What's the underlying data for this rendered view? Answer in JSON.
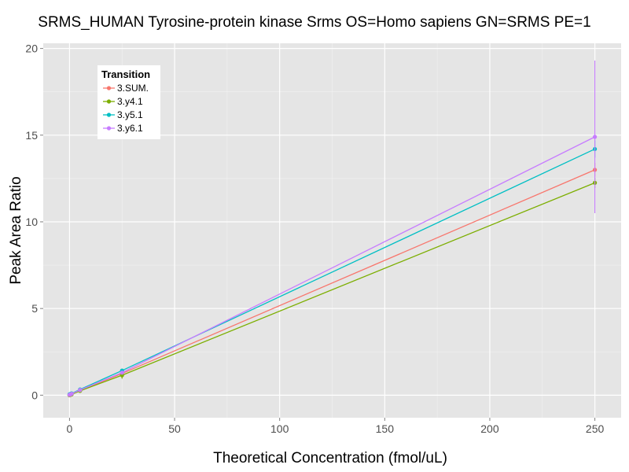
{
  "chart_data": {
    "type": "line",
    "title": "SRMS_HUMAN Tyrosine-protein kinase Srms OS=Homo sapiens GN=SRMS PE=1",
    "xlabel": "Theoretical Concentration (fmol/uL)",
    "ylabel": "Peak Area Ratio",
    "xlim": [
      -12.5,
      262.5
    ],
    "ylim": [
      -1.3,
      20.3
    ],
    "xticks": [
      0,
      50,
      100,
      150,
      200,
      250
    ],
    "yticks": [
      0,
      5,
      10,
      15,
      20
    ],
    "grid": true,
    "legend": {
      "title": "Transition",
      "placement": "top-left"
    },
    "x": [
      0,
      0.5,
      1,
      5,
      25,
      250
    ],
    "series": [
      {
        "name": "3.SUM.",
        "color": "#F8766D",
        "values": [
          0.0,
          0.02,
          0.05,
          0.27,
          1.25,
          13.0
        ],
        "err": [
          0.0,
          0.0,
          0.0,
          0.02,
          0.25,
          0.4
        ]
      },
      {
        "name": "3.y4.1",
        "color": "#7CAE00",
        "values": [
          0.0,
          0.02,
          0.05,
          0.25,
          1.15,
          12.25
        ],
        "err": [
          0.0,
          0.0,
          0.0,
          0.02,
          0.2,
          0.3
        ]
      },
      {
        "name": "3.y5.1",
        "color": "#00BFC4",
        "values": [
          0.05,
          0.08,
          0.1,
          0.33,
          1.42,
          14.2
        ],
        "err": [
          0.0,
          0.0,
          0.0,
          0.03,
          0.1,
          0.5
        ]
      },
      {
        "name": "3.y6.1",
        "color": "#C77CFF",
        "values": [
          0.02,
          0.05,
          0.08,
          0.3,
          1.3,
          14.9
        ],
        "err": [
          0.0,
          0.0,
          0.0,
          0.03,
          0.1,
          4.4
        ]
      }
    ]
  }
}
